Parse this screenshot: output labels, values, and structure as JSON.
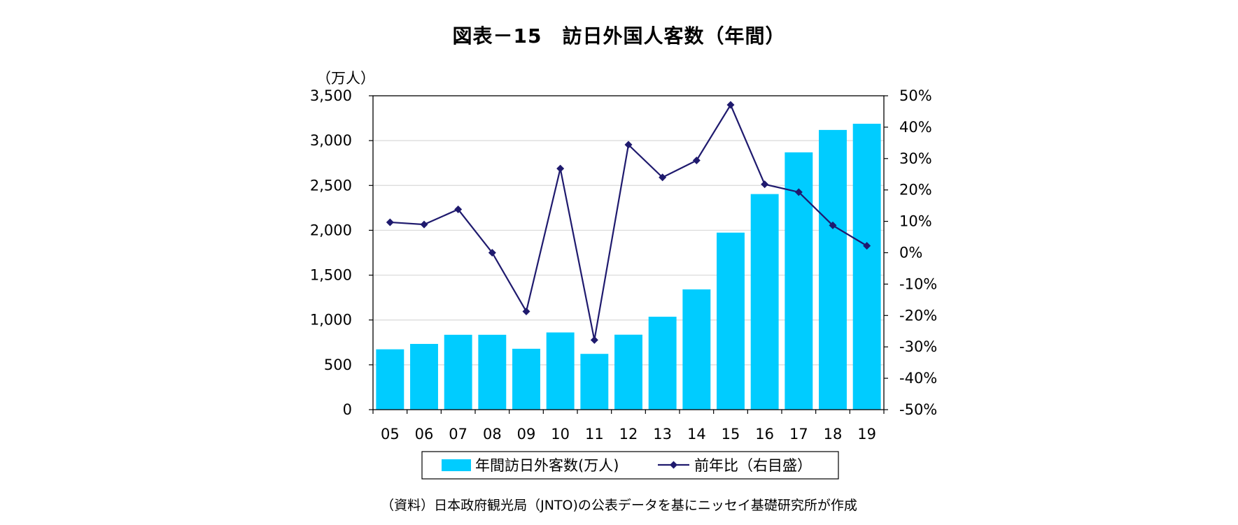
{
  "title": "図表－15　訪日外国人客数（年間）",
  "source": "（資料）日本政府観光局（JNTO)の公表データを基にニッセイ基礎研究所が作成",
  "colors": {
    "bar": "#00CCFF",
    "line": "#1F1A6E",
    "grid": "#D9D9D9",
    "axis": "#000000"
  },
  "chart_data": {
    "type": "bar",
    "title": "図表－15　訪日外国人客数（年間）",
    "y_unit_label": "（万人）",
    "categories": [
      "05",
      "06",
      "07",
      "08",
      "09",
      "10",
      "11",
      "12",
      "13",
      "14",
      "15",
      "16",
      "17",
      "18",
      "19"
    ],
    "ylim": [
      0,
      3500
    ],
    "y_ticks": [
      0,
      500,
      1000,
      1500,
      2000,
      2500,
      3000,
      3500
    ],
    "y_tick_labels": [
      "0",
      "500",
      "1,000",
      "1,500",
      "2,000",
      "2,500",
      "3,000",
      "3,500"
    ],
    "y2lim": [
      -50,
      50
    ],
    "y2_ticks": [
      -50,
      -40,
      -30,
      -20,
      -10,
      0,
      10,
      20,
      30,
      40,
      50
    ],
    "y2_tick_labels": [
      "-50%",
      "-40%",
      "-30%",
      "-20%",
      "-10%",
      "0%",
      "10%",
      "20%",
      "30%",
      "40%",
      "50%"
    ],
    "grid": true,
    "legend_position": "bottom",
    "series": [
      {
        "name": "年間訪日外客数(万人)",
        "type": "bar",
        "axis": "left",
        "values": [
          673,
          733,
          835,
          835,
          679,
          861,
          622,
          836,
          1036,
          1341,
          1974,
          2404,
          2869,
          3119,
          3188
        ]
      },
      {
        "name": "前年比（右目盛）",
        "type": "line",
        "axis": "right",
        "values": [
          9.7,
          9.0,
          13.8,
          0.0,
          -18.7,
          26.8,
          -27.8,
          34.4,
          24.0,
          29.4,
          47.1,
          21.8,
          19.3,
          8.7,
          2.2
        ]
      }
    ]
  }
}
